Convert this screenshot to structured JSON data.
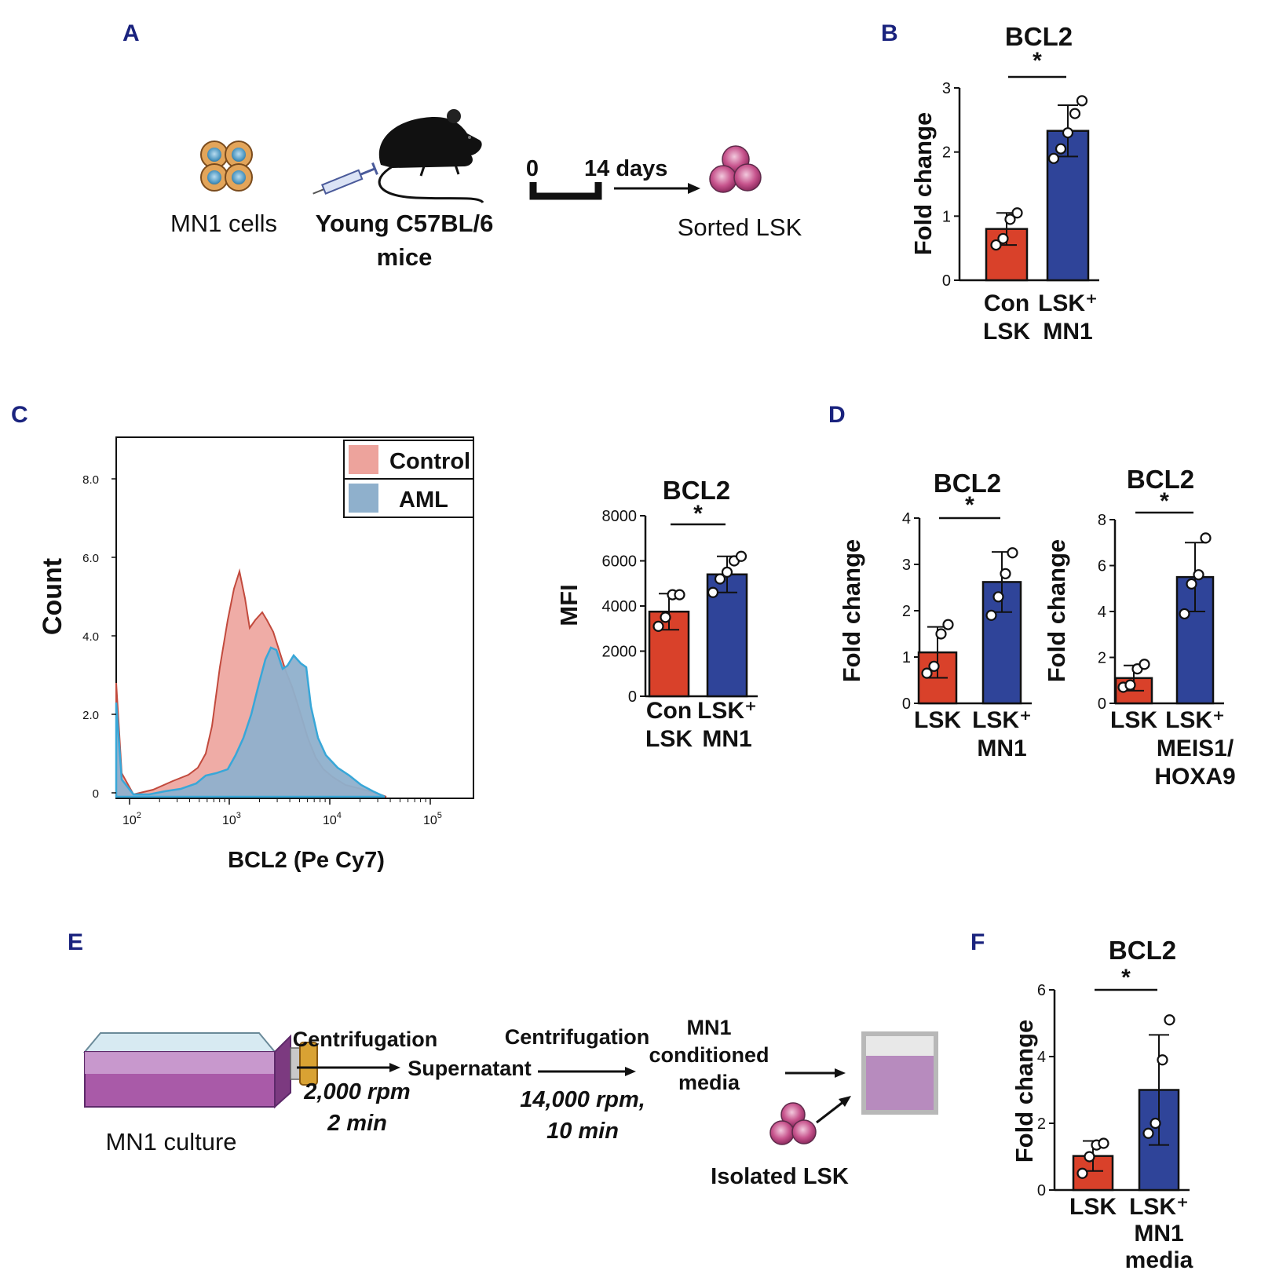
{
  "colors": {
    "con": "#d9412a",
    "mn1": "#2f4499",
    "hist_control": "#eda39c",
    "hist_aml": "#8fb0cc",
    "accent": "#1a237e",
    "flask_media": "#8a4a8c"
  },
  "panels": {
    "A": {
      "letter": "A",
      "cells_label": "MN1 cells",
      "mice_label_1": "Young C57BL/6",
      "mice_label_2": "mice",
      "day_start": "0",
      "day_end": "14 days",
      "sorted_label": "Sorted LSK"
    },
    "B": {
      "letter": "B"
    },
    "C": {
      "letter": "C",
      "hist_ylabel": "Count",
      "hist_xlabel": "BCL2 (Pe Cy7)",
      "hist_yticks": [
        "0",
        "2.0",
        "4.0",
        "6.0",
        "8.0"
      ],
      "hist_xticks": [
        {
          "base": "10",
          "exp": "2"
        },
        {
          "base": "10",
          "exp": "3"
        },
        {
          "base": "10",
          "exp": "4"
        },
        {
          "base": "10",
          "exp": "5"
        }
      ],
      "legend": [
        "Control",
        "AML"
      ]
    },
    "D": {
      "letter": "D"
    },
    "E": {
      "letter": "E",
      "culture_label": "MN1 culture",
      "centrifugation": "Centrifugation",
      "speed1": "2,000 rpm",
      "time1": "2 min",
      "supernatant": "Supernatant",
      "speed2": "14,000 rpm,",
      "time2": "10 min",
      "cm_line1": "MN1",
      "cm_line2": "conditioned",
      "cm_line3": "media",
      "isolated": "Isolated LSK"
    },
    "F": {
      "letter": "F"
    }
  },
  "chart_data": [
    {
      "id": "B",
      "type": "bar",
      "title": "BCL2",
      "ylabel": "Fold change",
      "ylim": [
        0,
        3
      ],
      "yticks": [
        0,
        1,
        2,
        3
      ],
      "significance": "*",
      "categories": [
        [
          "Con",
          "LSK"
        ],
        [
          "LSK⁺",
          "MN1"
        ]
      ],
      "values": [
        0.8,
        2.33
      ],
      "errors": [
        0.25,
        0.4
      ],
      "points": [
        [
          0.55,
          0.65,
          0.95,
          1.05
        ],
        [
          1.9,
          2.05,
          2.3,
          2.6,
          2.8
        ]
      ]
    },
    {
      "id": "C",
      "type": "bar",
      "title": "BCL2",
      "ylabel": "MFI",
      "ylim": [
        0,
        8000
      ],
      "yticks": [
        0,
        2000,
        4000,
        6000,
        8000
      ],
      "significance": "*",
      "categories": [
        [
          "Con",
          "LSK"
        ],
        [
          "LSK⁺",
          "MN1"
        ]
      ],
      "values": [
        3750,
        5400
      ],
      "errors": [
        800,
        800
      ],
      "points": [
        [
          3100,
          3500,
          4500,
          4500
        ],
        [
          4600,
          5200,
          5500,
          6000,
          6200
        ]
      ]
    },
    {
      "id": "D1",
      "type": "bar",
      "title": "BCL2",
      "ylabel": "Fold change",
      "ylim": [
        0,
        4
      ],
      "yticks": [
        0,
        1,
        2,
        3,
        4
      ],
      "significance": "*",
      "categories": [
        [
          "LSK"
        ],
        [
          "LSK⁺",
          "MN1"
        ]
      ],
      "values": [
        1.1,
        2.62
      ],
      "errors": [
        0.55,
        0.65
      ],
      "points": [
        [
          0.65,
          0.8,
          1.5,
          1.7
        ],
        [
          1.9,
          2.3,
          2.8,
          3.25
        ]
      ]
    },
    {
      "id": "D2",
      "type": "bar",
      "title": "BCL2",
      "ylabel": "Fold change",
      "ylim": [
        0,
        8
      ],
      "yticks": [
        0,
        2,
        4,
        6,
        8
      ],
      "significance": "*",
      "categories": [
        [
          "LSK"
        ],
        [
          "LSK⁺",
          "MEIS1/",
          "HOXA9"
        ]
      ],
      "values": [
        1.1,
        5.5
      ],
      "errors": [
        0.55,
        1.5
      ],
      "points": [
        [
          0.7,
          0.8,
          1.5,
          1.7
        ],
        [
          3.9,
          5.2,
          5.6,
          7.2
        ]
      ]
    },
    {
      "id": "F",
      "type": "bar",
      "title": "BCL2",
      "ylabel": "Fold change",
      "ylim": [
        0,
        6
      ],
      "yticks": [
        0,
        2,
        4,
        6
      ],
      "significance": "*",
      "categories": [
        [
          "LSK"
        ],
        [
          "LSK⁺",
          "MN1",
          "media"
        ]
      ],
      "values": [
        1.02,
        3.0
      ],
      "errors": [
        0.45,
        1.65
      ],
      "points": [
        [
          0.5,
          1.0,
          1.35,
          1.4
        ],
        [
          1.7,
          2.0,
          3.9,
          5.1
        ]
      ]
    }
  ]
}
